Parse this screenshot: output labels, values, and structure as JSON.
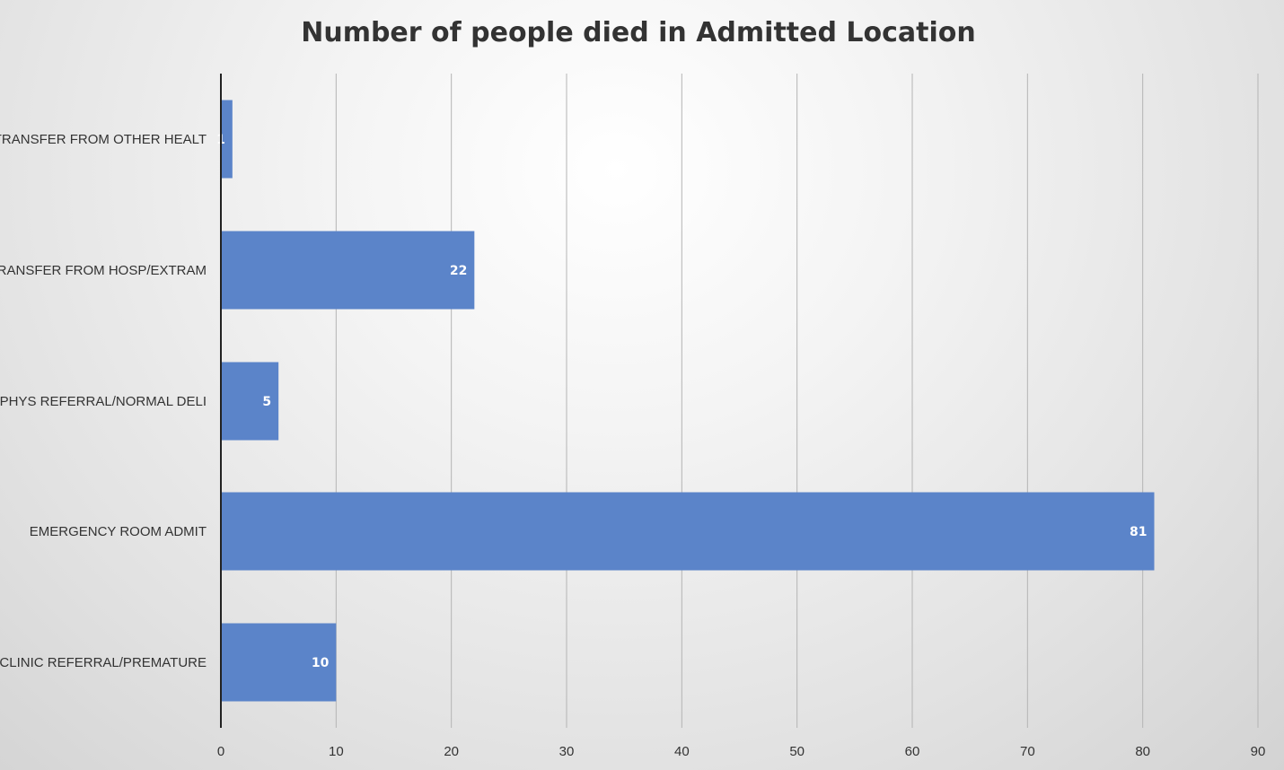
{
  "chart_data": {
    "type": "bar",
    "orientation": "horizontal",
    "title": "Number of people died in Admitted Location",
    "xlabel": "",
    "ylabel": "",
    "categories": [
      "TRANSFER FROM OTHER HEALT",
      "TRANSFER FROM HOSP/EXTRAM",
      "PHYS REFERRAL/NORMAL DELI",
      "EMERGENCY ROOM ADMIT",
      "CLINIC REFERRAL/PREMATURE"
    ],
    "values": [
      1,
      22,
      5,
      81,
      10
    ],
    "xlim": [
      0,
      90
    ],
    "xticks": [
      0,
      10,
      20,
      30,
      40,
      50,
      60,
      70,
      80,
      90
    ],
    "grid": "vertical",
    "legend": "none",
    "data_labels": true,
    "colors": {
      "bar": "#5b84c9",
      "data_label": "#ffffff",
      "title": "#333333",
      "gridline": "#b4b4b4",
      "axis": "#222222"
    }
  }
}
